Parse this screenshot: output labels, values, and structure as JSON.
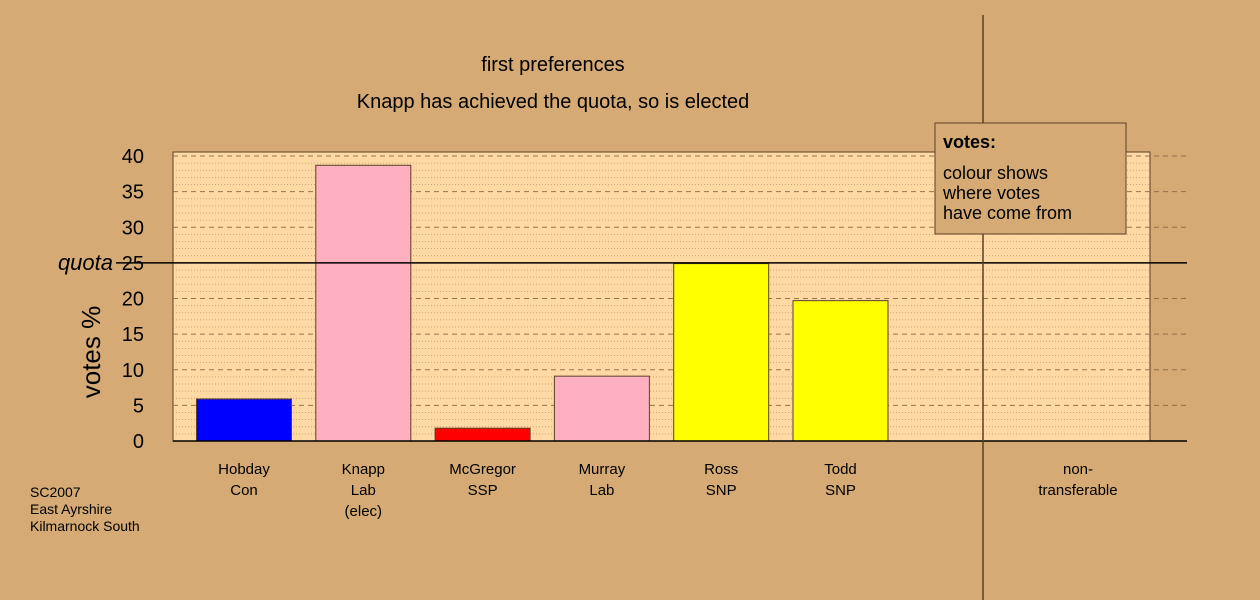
{
  "chart_data": {
    "type": "bar",
    "title": "first preferences",
    "subtitle": "Knapp has achieved the quota, so is elected",
    "ylabel": "votes %",
    "ylim": [
      0,
      40
    ],
    "yticks": [
      0,
      5,
      10,
      15,
      20,
      25,
      30,
      35,
      40
    ],
    "quota": {
      "label": "quota",
      "value": 25
    },
    "categories": [
      {
        "lines": [
          "Hobday",
          "Con"
        ],
        "value": 5.9,
        "color": "#0000ff"
      },
      {
        "lines": [
          "Knapp",
          "Lab",
          "(elec)"
        ],
        "value": 38.7,
        "color": "#ffb0c0"
      },
      {
        "lines": [
          "McGregor",
          "SSP"
        ],
        "value": 1.8,
        "color": "#ff0000"
      },
      {
        "lines": [
          "Murray",
          "Lab"
        ],
        "value": 9.1,
        "color": "#ffb0c0"
      },
      {
        "lines": [
          "Ross",
          "SNP"
        ],
        "value": 24.9,
        "color": "#ffff00"
      },
      {
        "lines": [
          "Todd",
          "SNP"
        ],
        "value": 19.7,
        "color": "#ffff00"
      }
    ],
    "nontransferable": {
      "lines": [
        "non-",
        "transferable"
      ],
      "value": 0
    },
    "legend": {
      "title": "votes:",
      "lines": [
        "colour shows",
        "where votes",
        "have come from"
      ],
      "placement": "top-right"
    },
    "note_lines": [
      "SC2007",
      "East Ayrshire",
      "Kilmarnock South"
    ],
    "colors": {
      "background": "#d5aa75",
      "plot_area": "#ffd9a3",
      "grid": "#8a6a45"
    }
  }
}
